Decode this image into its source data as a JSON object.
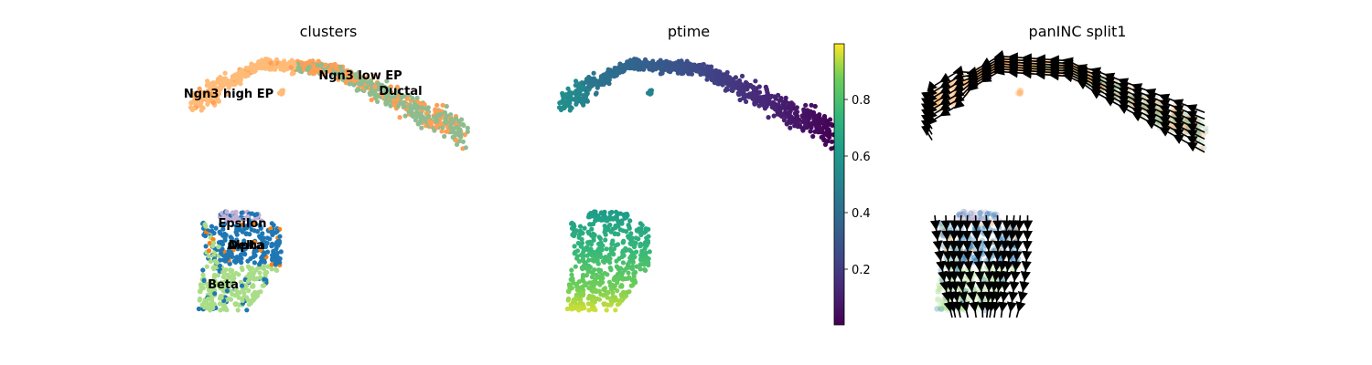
{
  "chart_data": [
    {
      "type": "scatter",
      "title": "clusters",
      "embedding": "umap",
      "clusters": [
        {
          "name": "Ngn3 high EP",
          "color": "#ffbb78"
        },
        {
          "name": "Ngn3 low EP",
          "color": "#ff9f55"
        },
        {
          "name": "Ductal",
          "color": "#8fbc8f"
        },
        {
          "name": "Epsilon",
          "color": "#c5b0d5"
        },
        {
          "name": "Alpha",
          "color": "#1f77b4"
        },
        {
          "name": "Delta",
          "color": "#ff7f0e"
        },
        {
          "name": "Beta",
          "color": "#aadd88"
        }
      ],
      "legend": "on data"
    },
    {
      "type": "scatter",
      "title": "ptime",
      "color_variable": "ptime",
      "colormap": "viridis",
      "colorbar": {
        "ticks": [
          "0.2",
          "0.4",
          "0.6",
          "0.8"
        ],
        "range": [
          0,
          1
        ]
      }
    },
    {
      "type": "scatter",
      "title": "panINC split1",
      "overlay": "velocity streamlines",
      "stream_color": "#000000"
    }
  ]
}
